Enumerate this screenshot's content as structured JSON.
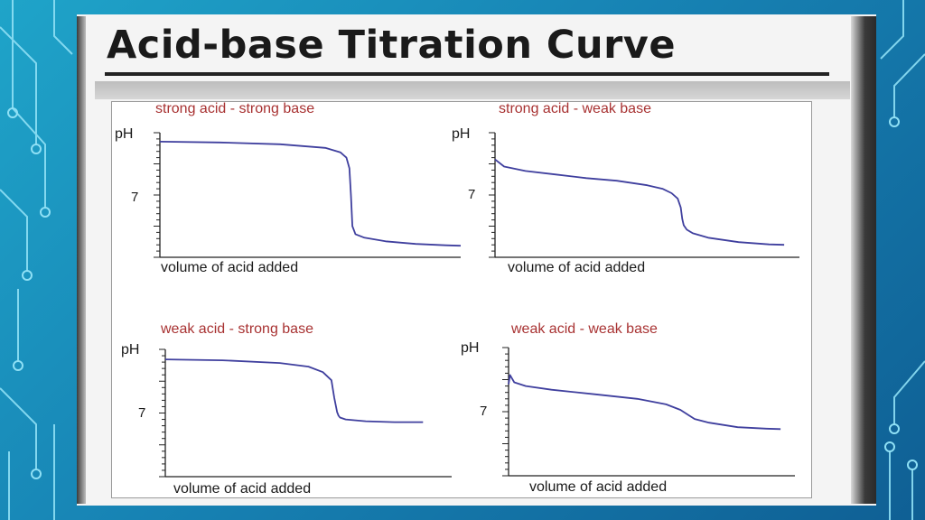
{
  "slide": {
    "title": "Acid-base Titration Curve"
  },
  "colors": {
    "curve": "#3f3f9e",
    "chart_title": "#a83232",
    "axis": "#222222"
  },
  "chart_data": [
    {
      "type": "line",
      "title": "strong acid - strong base",
      "ylabel": "pH",
      "xlabel": "volume of acid added",
      "y_tick_labels": [
        "7"
      ],
      "xlim": [
        0,
        100
      ],
      "ylim": [
        0,
        14
      ],
      "x": [
        0,
        20,
        40,
        55,
        60,
        62,
        63,
        63.5,
        64,
        65,
        68,
        75,
        85,
        95,
        100
      ],
      "y": [
        13,
        12.9,
        12.7,
        12.3,
        11.8,
        11.2,
        10,
        7,
        3.5,
        2.6,
        2.2,
        1.8,
        1.5,
        1.35,
        1.3
      ]
    },
    {
      "type": "line",
      "title": "strong acid - weak base",
      "ylabel": "pH",
      "xlabel": "volume of acid added",
      "y_tick_labels": [
        "7"
      ],
      "xlim": [
        0,
        100
      ],
      "ylim": [
        0,
        14
      ],
      "x": [
        0,
        3,
        10,
        20,
        30,
        40,
        50,
        55,
        58,
        60,
        61,
        61.5,
        62,
        63,
        65,
        70,
        80,
        90,
        95
      ],
      "y": [
        11,
        10.2,
        9.7,
        9.3,
        8.9,
        8.6,
        8.1,
        7.7,
        7.2,
        6.6,
        5.6,
        4.3,
        3.6,
        3.1,
        2.7,
        2.2,
        1.7,
        1.45,
        1.4
      ]
    },
    {
      "type": "line",
      "title": "weak acid - strong base",
      "ylabel": "pH",
      "xlabel": "volume of acid added",
      "y_tick_labels": [
        "7"
      ],
      "xlim": [
        0,
        100
      ],
      "ylim": [
        0,
        14
      ],
      "x": [
        0,
        20,
        40,
        50,
        55,
        58,
        59,
        60,
        60.5,
        61,
        63,
        70,
        80,
        90
      ],
      "y": [
        12.9,
        12.8,
        12.5,
        12.1,
        11.5,
        10.6,
        8.7,
        7.1,
        6.7,
        6.5,
        6.3,
        6.1,
        6.0,
        6.0
      ]
    },
    {
      "type": "line",
      "title": "weak acid - weak base",
      "ylabel": "pH",
      "xlabel": "volume of acid added",
      "y_tick_labels": [
        "7"
      ],
      "xlim": [
        0,
        100
      ],
      "ylim": [
        0,
        14
      ],
      "x": [
        0,
        0.5,
        2,
        6,
        15,
        30,
        45,
        55,
        60,
        63,
        65,
        70,
        80,
        90,
        95
      ],
      "y": [
        10,
        11,
        10.2,
        9.8,
        9.4,
        8.9,
        8.4,
        7.8,
        7.2,
        6.6,
        6.2,
        5.8,
        5.3,
        5.15,
        5.1
      ]
    }
  ]
}
